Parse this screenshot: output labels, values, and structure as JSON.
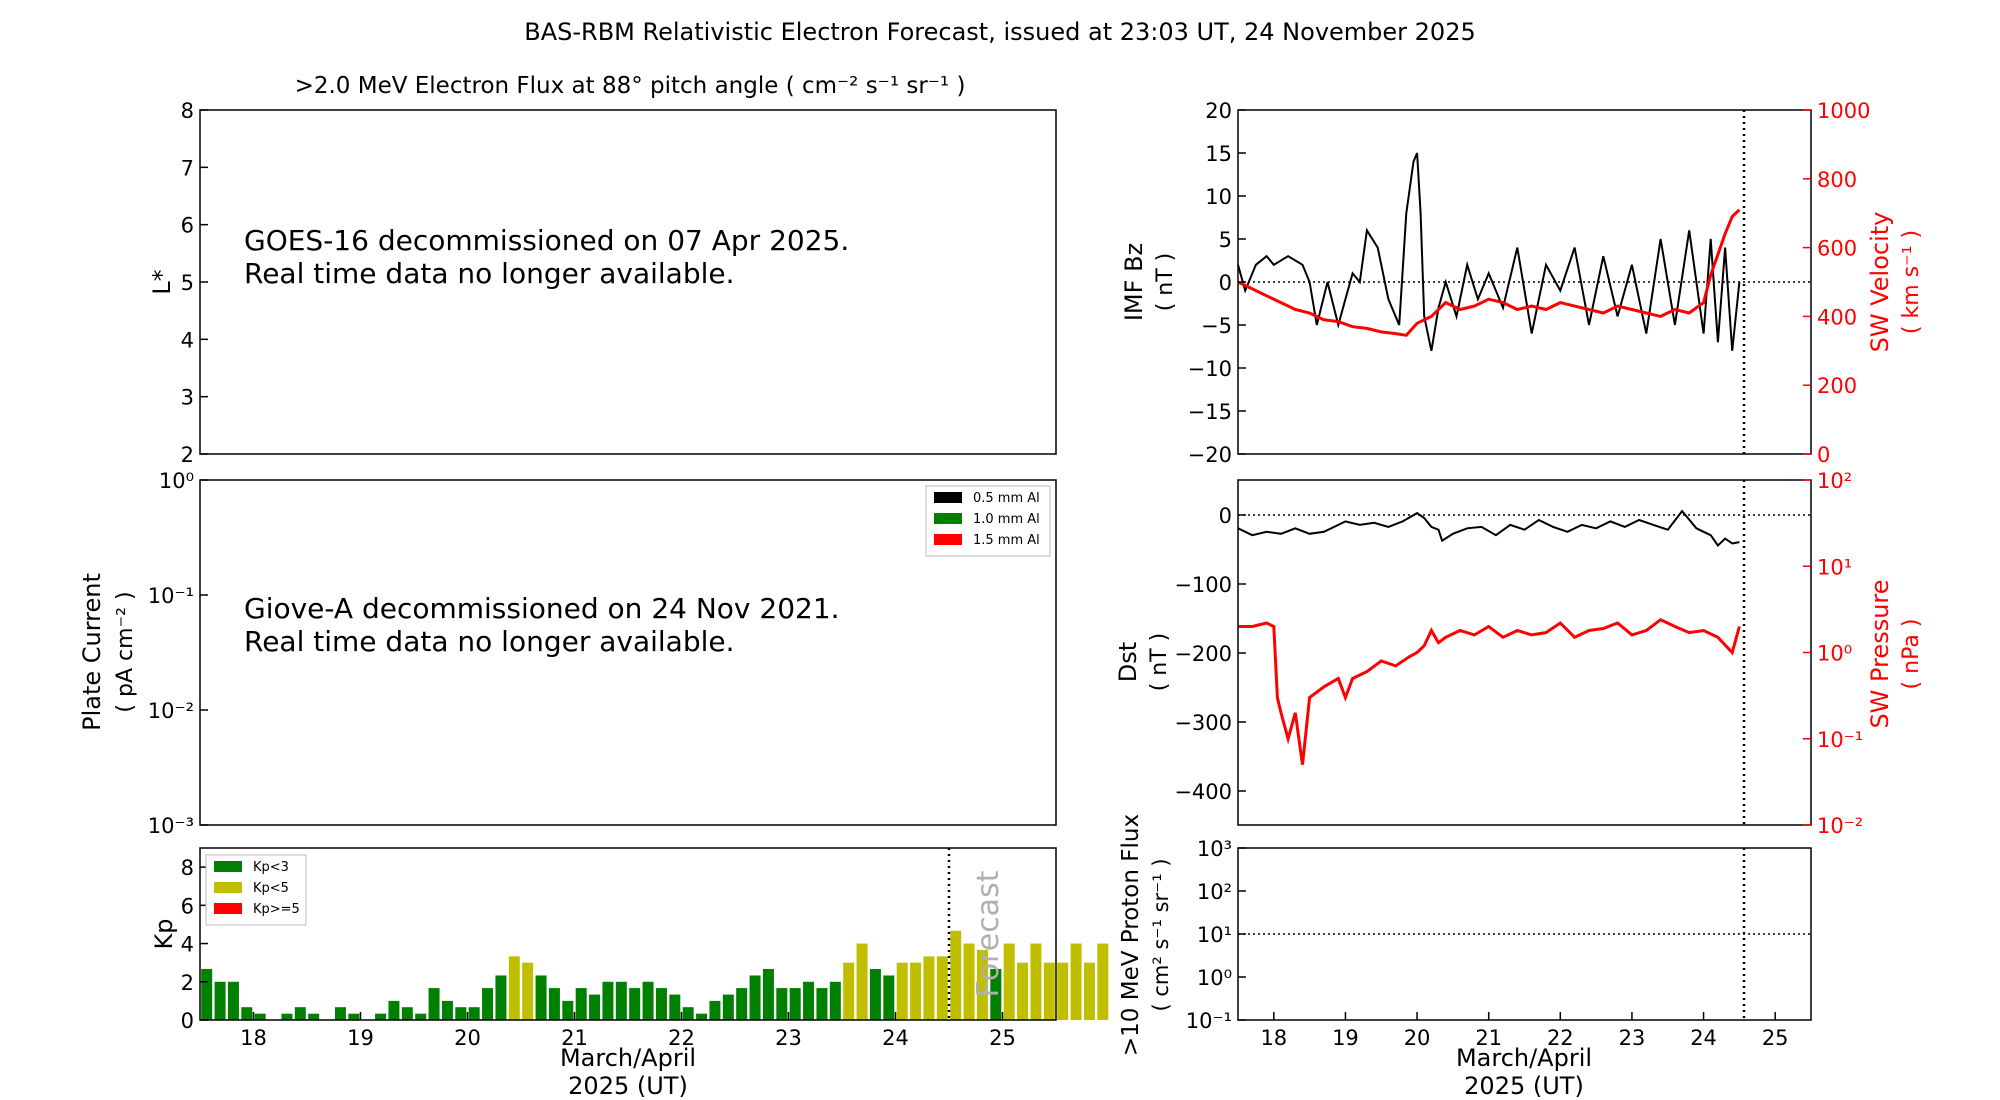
{
  "title": "BAS-RBM Relativistic Electron Forecast, issued at 23:03 UT, 24 November 2025",
  "x_axis": {
    "ticks": [
      "18",
      "19",
      "20",
      "21",
      "22",
      "23",
      "24",
      "25"
    ],
    "label_line1": "March/April",
    "label_line2": "2025 (UT)"
  },
  "colors": {
    "axis": "#000000",
    "red": "#ff0000",
    "kp_green": "#008000",
    "kp_yellow": "#bfbf00",
    "kp_red": "#ff0000",
    "forecast_text": "#b0b0b0"
  },
  "panels": {
    "electron_flux": {
      "title": ">2.0 MeV Electron Flux at 88° pitch angle ( cm⁻² s⁻¹ sr⁻¹ )",
      "ylabel": "L*",
      "yticks": [
        "2",
        "3",
        "4",
        "5",
        "6",
        "7",
        "8"
      ],
      "message_line1": "GOES-16 decommissioned on 07 Apr 2025.",
      "message_line2": "Real time data no longer available."
    },
    "plate_current": {
      "ylabel_line1": "Plate Current",
      "ylabel_line2": "( pA cm⁻² )",
      "yticks": [
        "10⁰",
        "10⁻¹",
        "10⁻²",
        "10⁻³"
      ],
      "message_line1": "Giove-A decommissioned on 24 Nov 2021.",
      "message_line2": "Real time data no longer available.",
      "legend": [
        {
          "label": "0.5 mm Al",
          "color": "#000000"
        },
        {
          "label": "1.0 mm Al",
          "color": "#008000"
        },
        {
          "label": "1.5 mm Al",
          "color": "#ff0000"
        }
      ]
    },
    "kp": {
      "ylabel": "Kp",
      "yticks": [
        "0",
        "2",
        "4",
        "6",
        "8"
      ],
      "forecast_label": "Forecast",
      "legend": [
        {
          "label": "Kp<3",
          "color": "#008000"
        },
        {
          "label": "Kp<5",
          "color": "#bfbf00"
        },
        {
          "label": "Kp>=5",
          "color": "#ff0000"
        }
      ]
    },
    "imf": {
      "ylabel_line1": "IMF Bz",
      "ylabel_line2": "( nT )",
      "yticks": [
        "20",
        "15",
        "10",
        "5",
        "0",
        "−5",
        "−10",
        "−15",
        "−20"
      ],
      "ylabel_right_line1": "SW Velocity",
      "ylabel_right_line2": "( km s⁻¹ )",
      "yticks_right": [
        "1000",
        "800",
        "600",
        "400",
        "200",
        "0"
      ]
    },
    "dst": {
      "ylabel_line1": "Dst",
      "ylabel_line2": "( nT )",
      "yticks": [
        "0",
        "−100",
        "−200",
        "−300",
        "−400"
      ],
      "ylabel_right_line1": "SW Pressure",
      "ylabel_right_line2": "( nPa )",
      "yticks_right": [
        "10²",
        "10¹",
        "10⁰",
        "10⁻¹",
        "10⁻²"
      ]
    },
    "proton": {
      "ylabel_line1": ">10 MeV Proton Flux",
      "ylabel_line2": "( cm² s⁻¹ sr⁻¹ )",
      "yticks": [
        "10³",
        "10²",
        "10¹",
        "10⁰",
        "10⁻¹"
      ]
    }
  },
  "chart_data": [
    {
      "type": "bar",
      "name": "Kp index (3-hourly)",
      "x_start_day": 17.5,
      "interval_days": 0.125,
      "ylim": [
        0,
        9
      ],
      "forecast_start_day": 24.5,
      "values": [
        2.67,
        2.0,
        2.0,
        0.67,
        0.33,
        0.0,
        0.33,
        0.67,
        0.33,
        0.0,
        0.67,
        0.33,
        0.0,
        0.33,
        1.0,
        0.67,
        0.33,
        1.67,
        1.0,
        0.67,
        0.67,
        1.67,
        2.33,
        3.33,
        3.0,
        2.33,
        1.67,
        1.0,
        1.67,
        1.33,
        2.0,
        2.0,
        1.67,
        2.0,
        1.67,
        1.33,
        0.67,
        0.33,
        1.0,
        1.33,
        1.67,
        2.33,
        2.67,
        1.67,
        1.67,
        2.0,
        1.67,
        2.0,
        3.0,
        4.0,
        2.67,
        2.33,
        3.0,
        3.0,
        3.33,
        3.33,
        4.67,
        4.0,
        3.67,
        2.67,
        4.0,
        3.0,
        4.0,
        3.0,
        3.0,
        4.0,
        3.0,
        4.0
      ]
    },
    {
      "type": "line",
      "name": "IMF Bz (nT)",
      "xlim": [
        17.5,
        25.5
      ],
      "ylim": [
        -20,
        20
      ],
      "x": [
        17.5,
        17.6,
        17.75,
        17.9,
        18.0,
        18.2,
        18.4,
        18.5,
        18.6,
        18.75,
        18.9,
        19.0,
        19.1,
        19.2,
        19.3,
        19.45,
        19.6,
        19.75,
        19.85,
        19.95,
        20.0,
        20.05,
        20.1,
        20.2,
        20.3,
        20.4,
        20.55,
        20.7,
        20.85,
        21.0,
        21.2,
        21.4,
        21.6,
        21.8,
        22.0,
        22.2,
        22.4,
        22.6,
        22.8,
        23.0,
        23.2,
        23.4,
        23.6,
        23.8,
        24.0,
        24.1,
        24.2,
        24.3,
        24.4,
        24.5
      ],
      "y": [
        2,
        -1,
        2,
        3,
        2,
        3,
        2,
        0,
        -5,
        0,
        -5,
        -2,
        1,
        0,
        6,
        4,
        -2,
        -5,
        8,
        14,
        15,
        8,
        -4,
        -8,
        -3,
        0,
        -4,
        2,
        -2,
        1,
        -3,
        4,
        -6,
        2,
        -1,
        4,
        -5,
        3,
        -4,
        2,
        -6,
        5,
        -5,
        6,
        -6,
        5,
        -7,
        4,
        -8,
        0
      ]
    },
    {
      "type": "line",
      "name": "SW Velocity (km s^-1)",
      "ylim": [
        0,
        1000
      ],
      "x": [
        17.5,
        17.7,
        17.9,
        18.1,
        18.3,
        18.5,
        18.7,
        18.9,
        19.1,
        19.3,
        19.5,
        19.7,
        19.85,
        20.0,
        20.2,
        20.4,
        20.6,
        20.8,
        21.0,
        21.2,
        21.4,
        21.6,
        21.8,
        22.0,
        22.2,
        22.4,
        22.6,
        22.8,
        23.0,
        23.2,
        23.4,
        23.6,
        23.8,
        24.0,
        24.1,
        24.2,
        24.3,
        24.4,
        24.5
      ],
      "y": [
        500,
        480,
        460,
        440,
        420,
        410,
        390,
        385,
        370,
        365,
        355,
        350,
        345,
        380,
        400,
        440,
        420,
        430,
        450,
        440,
        420,
        430,
        420,
        440,
        430,
        420,
        410,
        430,
        420,
        410,
        400,
        420,
        410,
        440,
        520,
        580,
        640,
        690,
        710
      ]
    },
    {
      "type": "line",
      "name": "Dst (nT)",
      "xlim": [
        17.5,
        25.5
      ],
      "ylim": [
        -450,
        50
      ],
      "x": [
        17.5,
        17.7,
        17.9,
        18.1,
        18.3,
        18.5,
        18.7,
        18.9,
        19.0,
        19.2,
        19.4,
        19.6,
        19.8,
        20.0,
        20.1,
        20.2,
        20.3,
        20.35,
        20.5,
        20.7,
        20.9,
        21.1,
        21.3,
        21.5,
        21.7,
        21.9,
        22.1,
        22.3,
        22.5,
        22.7,
        22.9,
        23.1,
        23.3,
        23.5,
        23.7,
        23.9,
        24.0,
        24.1,
        24.2,
        24.3,
        24.4,
        24.5
      ],
      "y": [
        -20,
        -30,
        -25,
        -28,
        -20,
        -28,
        -25,
        -15,
        -10,
        -15,
        -12,
        -18,
        -10,
        2,
        -5,
        -18,
        -22,
        -38,
        -28,
        -20,
        -18,
        -30,
        -15,
        -22,
        -8,
        -18,
        -25,
        -15,
        -20,
        -10,
        -18,
        -8,
        -15,
        -22,
        5,
        -20,
        -25,
        -30,
        -45,
        -35,
        -42,
        -40
      ]
    },
    {
      "type": "line",
      "name": "SW Pressure (nPa)",
      "yscale": "log",
      "ylim": [
        0.01,
        100
      ],
      "x": [
        17.5,
        17.7,
        17.9,
        18.0,
        18.05,
        18.1,
        18.2,
        18.3,
        18.4,
        18.5,
        18.7,
        18.9,
        19.0,
        19.1,
        19.3,
        19.5,
        19.7,
        19.9,
        20.0,
        20.1,
        20.2,
        20.3,
        20.4,
        20.6,
        20.8,
        21.0,
        21.2,
        21.4,
        21.6,
        21.8,
        22.0,
        22.2,
        22.4,
        22.6,
        22.8,
        23.0,
        23.2,
        23.4,
        23.6,
        23.8,
        24.0,
        24.2,
        24.4,
        24.5
      ],
      "y": [
        2.0,
        2.0,
        2.2,
        2.0,
        0.3,
        0.2,
        0.1,
        0.2,
        0.05,
        0.3,
        0.4,
        0.5,
        0.3,
        0.5,
        0.6,
        0.8,
        0.7,
        0.9,
        1.0,
        1.2,
        1.8,
        1.3,
        1.5,
        1.8,
        1.6,
        2.0,
        1.5,
        1.8,
        1.6,
        1.7,
        2.2,
        1.5,
        1.8,
        1.9,
        2.2,
        1.6,
        1.8,
        2.4,
        2.0,
        1.7,
        1.8,
        1.5,
        1.0,
        2.0
      ]
    },
    {
      "type": "line",
      "name": ">10 MeV Proton Flux threshold",
      "yscale": "log",
      "ylim": [
        0.1,
        1000
      ],
      "threshold": 10
    }
  ]
}
